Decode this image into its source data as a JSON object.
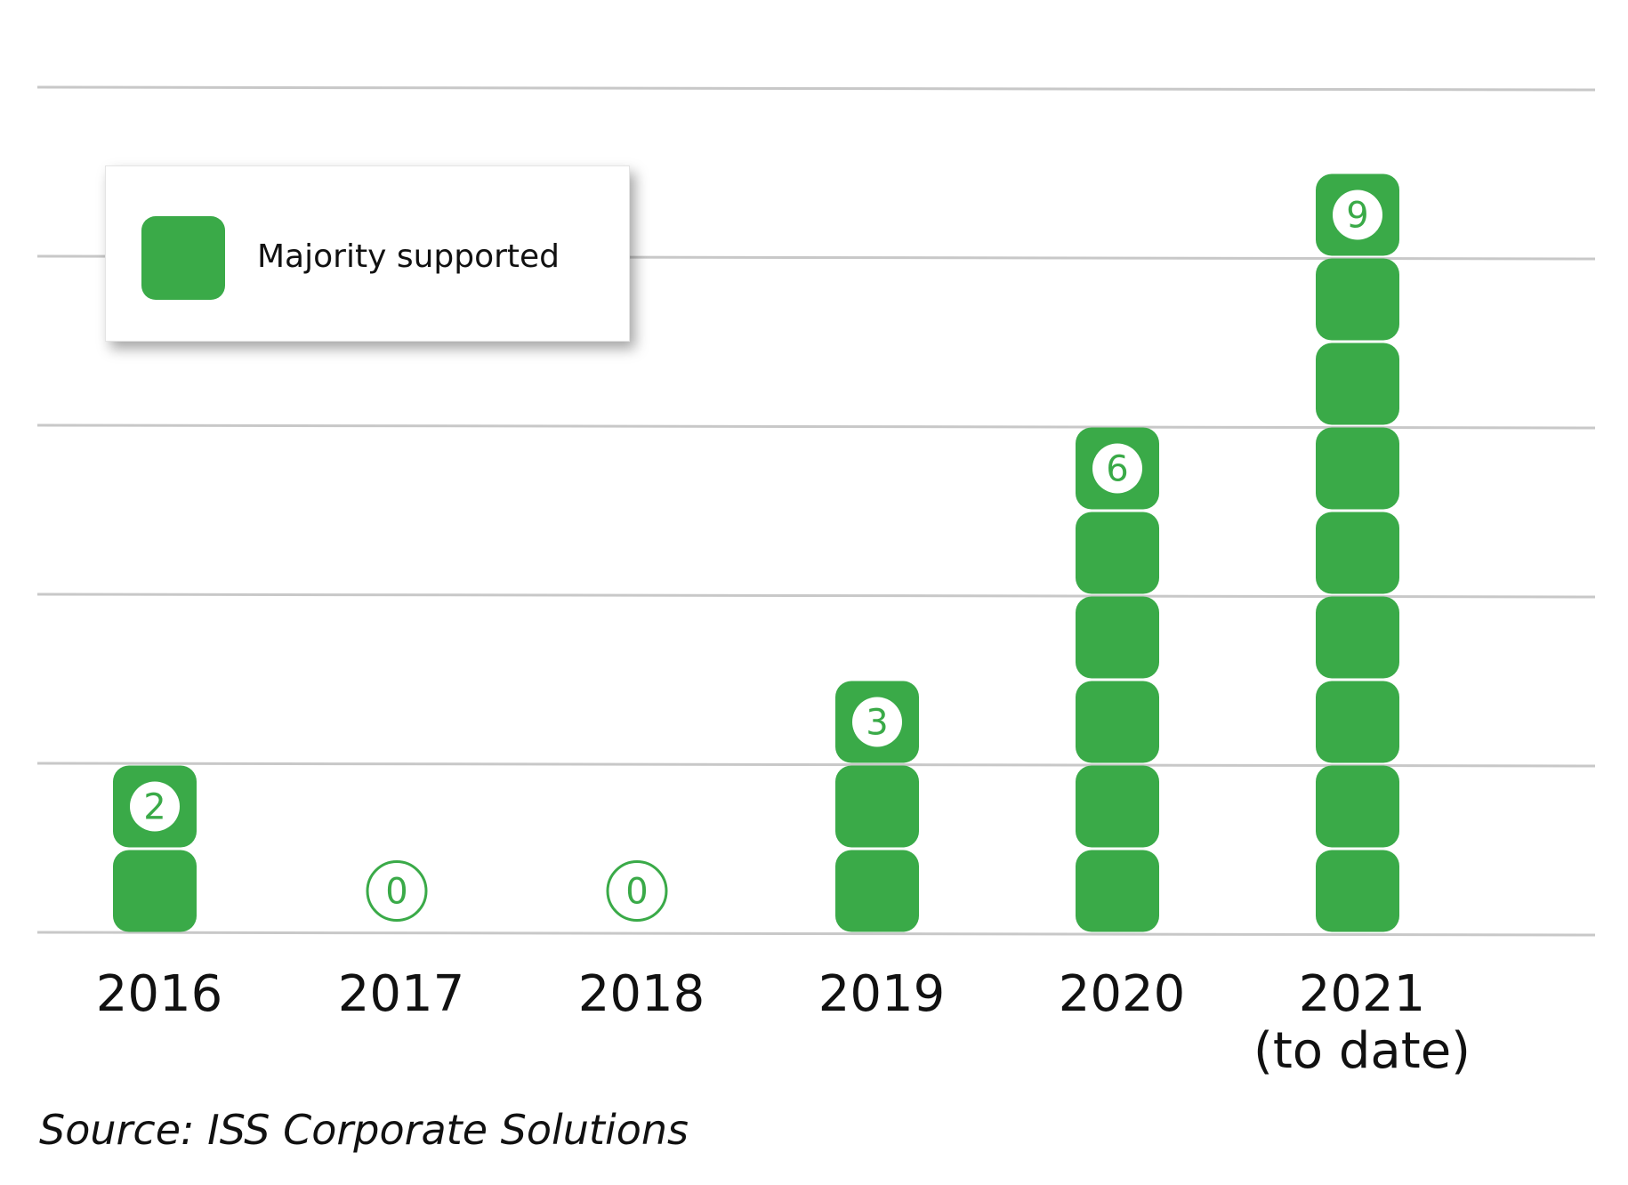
{
  "chart_data": {
    "type": "bar",
    "categories": [
      "2016",
      "2017",
      "2018",
      "2019",
      "2020",
      "2021 (to date)"
    ],
    "category_lines": [
      [
        "2016"
      ],
      [
        "2017"
      ],
      [
        "2018"
      ],
      [
        "2019"
      ],
      [
        "2020"
      ],
      [
        "2021",
        "(to date)"
      ]
    ],
    "series": [
      {
        "name": "Majority supported",
        "values": [
          2,
          0,
          0,
          3,
          6,
          9
        ]
      }
    ],
    "ylim": [
      0,
      10
    ],
    "grid": true,
    "legend": "top-left",
    "colors": {
      "bar": "#3aaa48",
      "grid": "#c8c8c8"
    }
  },
  "legend": {
    "label": "Majority supported"
  },
  "source": "Source: ISS Corporate Solutions"
}
